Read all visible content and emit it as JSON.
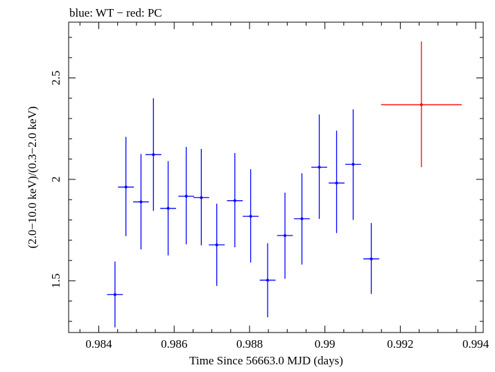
{
  "chart_data": {
    "type": "scatter",
    "title": "blue: WT − red: PC",
    "xlabel": "Time Since 56663.0 MJD (days)",
    "ylabel": "(2.0−10.0 keV)/(0.3−2.0 keV)",
    "xlim": [
      0.9832,
      0.9942
    ],
    "ylim": [
      1.245,
      2.775
    ],
    "x_ticks": [
      0.984,
      0.986,
      0.988,
      0.99,
      0.992,
      0.994
    ],
    "x_tick_labels": [
      "0.984",
      "0.986",
      "0.988",
      "0.99",
      "0.992",
      "0.994"
    ],
    "y_ticks": [
      1.5,
      2,
      2.5
    ],
    "y_tick_labels": [
      "1.5",
      "2",
      "2.5"
    ],
    "grid": false,
    "series": [
      {
        "name": "WT",
        "color": "#0000ff",
        "points": [
          {
            "x": 0.98443,
            "y": 1.432,
            "xerr": 0.00021,
            "ylo": 1.27,
            "yhi": 1.595
          },
          {
            "x": 0.98472,
            "y": 1.962,
            "xerr": 0.00021,
            "ylo": 1.72,
            "yhi": 2.21
          },
          {
            "x": 0.98512,
            "y": 1.889,
            "xerr": 0.00021,
            "ylo": 1.655,
            "yhi": 2.125
          },
          {
            "x": 0.98545,
            "y": 2.122,
            "xerr": 0.00021,
            "ylo": 1.845,
            "yhi": 2.4
          },
          {
            "x": 0.98584,
            "y": 1.857,
            "xerr": 0.00021,
            "ylo": 1.625,
            "yhi": 2.09
          },
          {
            "x": 0.98632,
            "y": 1.917,
            "xerr": 0.00021,
            "ylo": 1.68,
            "yhi": 2.16
          },
          {
            "x": 0.98672,
            "y": 1.91,
            "xerr": 0.00021,
            "ylo": 1.675,
            "yhi": 2.15
          },
          {
            "x": 0.98713,
            "y": 1.677,
            "xerr": 0.00021,
            "ylo": 1.475,
            "yhi": 1.88
          },
          {
            "x": 0.98761,
            "y": 1.895,
            "xerr": 0.00021,
            "ylo": 1.665,
            "yhi": 2.13
          },
          {
            "x": 0.98803,
            "y": 1.818,
            "xerr": 0.00021,
            "ylo": 1.59,
            "yhi": 2.05
          },
          {
            "x": 0.98848,
            "y": 1.503,
            "xerr": 0.00021,
            "ylo": 1.32,
            "yhi": 1.685
          },
          {
            "x": 0.98894,
            "y": 1.723,
            "xerr": 0.00021,
            "ylo": 1.51,
            "yhi": 1.935
          },
          {
            "x": 0.98939,
            "y": 1.806,
            "xerr": 0.00021,
            "ylo": 1.58,
            "yhi": 2.03
          },
          {
            "x": 0.98985,
            "y": 2.06,
            "xerr": 0.00021,
            "ylo": 1.805,
            "yhi": 2.32
          },
          {
            "x": 0.99031,
            "y": 1.982,
            "xerr": 0.00021,
            "ylo": 1.735,
            "yhi": 2.24
          },
          {
            "x": 0.99075,
            "y": 2.074,
            "xerr": 0.00021,
            "ylo": 1.8,
            "yhi": 2.345
          },
          {
            "x": 0.99123,
            "y": 1.608,
            "xerr": 0.00021,
            "ylo": 1.435,
            "yhi": 1.785
          }
        ]
      },
      {
        "name": "PC",
        "color": "#ff0000",
        "points": [
          {
            "x": 0.99256,
            "y": 2.368,
            "xerr": 0.00107,
            "ylo": 2.06,
            "yhi": 2.68
          }
        ]
      }
    ]
  }
}
